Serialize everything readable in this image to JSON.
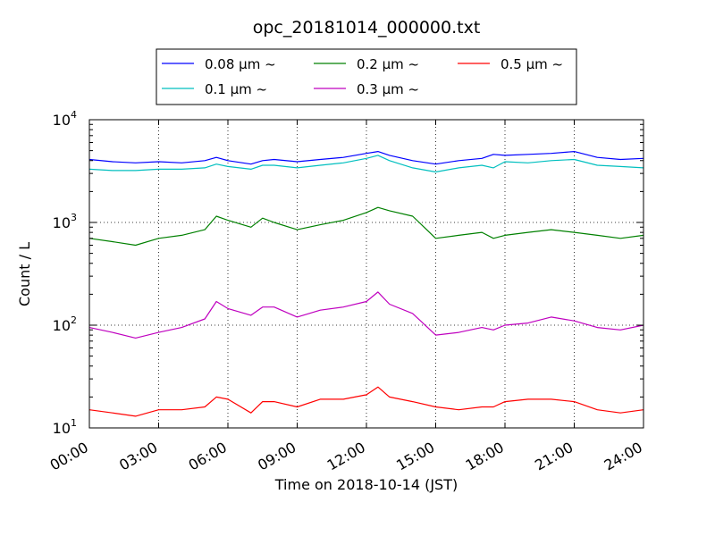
{
  "chart_data": {
    "type": "line",
    "title": "opc_20181014_000000.txt",
    "xlabel": "Time on 2018-10-14 (JST)",
    "ylabel": "Count / L",
    "x_unit": "hours (JST)",
    "xlim": [
      0,
      24
    ],
    "ylim": [
      10,
      10000
    ],
    "y_scale": "log",
    "grid": true,
    "grid_style": "dotted",
    "legend_position": "top (above plot)",
    "x_tick_values": [
      0,
      3,
      6,
      9,
      12,
      15,
      18,
      21,
      24
    ],
    "x_tick_labels": [
      "00:00",
      "03:00",
      "06:00",
      "09:00",
      "12:00",
      "15:00",
      "18:00",
      "21:00",
      "24:00"
    ],
    "y_tick_values": [
      10,
      100,
      1000,
      10000
    ],
    "y_tick_labels": [
      {
        "base": "10",
        "exp": "1"
      },
      {
        "base": "10",
        "exp": "2"
      },
      {
        "base": "10",
        "exp": "3"
      },
      {
        "base": "10",
        "exp": "4"
      }
    ],
    "x": [
      0,
      1,
      2,
      3,
      4,
      5,
      5.5,
      6,
      7,
      7.5,
      8,
      9,
      10,
      11,
      12,
      12.5,
      13,
      14,
      15,
      16,
      17,
      17.5,
      18,
      19,
      20,
      21,
      22,
      23,
      24
    ],
    "series": [
      {
        "name": "0.08 μm ~",
        "color": "#0000ff",
        "values": [
          4100,
          3900,
          3800,
          3900,
          3800,
          4000,
          4300,
          4000,
          3700,
          4000,
          4100,
          3900,
          4100,
          4300,
          4700,
          4900,
          4500,
          4000,
          3700,
          4000,
          4200,
          4600,
          4500,
          4600,
          4700,
          4900,
          4300,
          4100,
          4200
        ]
      },
      {
        "name": "0.1 μm ~",
        "color": "#00bfbf",
        "values": [
          3300,
          3200,
          3200,
          3300,
          3300,
          3400,
          3700,
          3500,
          3300,
          3600,
          3600,
          3400,
          3600,
          3800,
          4200,
          4500,
          4000,
          3400,
          3100,
          3400,
          3600,
          3400,
          3900,
          3800,
          4000,
          4100,
          3600,
          3500,
          3400
        ]
      },
      {
        "name": "0.2 μm ~",
        "color": "#008000",
        "values": [
          700,
          650,
          600,
          700,
          750,
          850,
          1150,
          1050,
          900,
          1100,
          1000,
          850,
          950,
          1050,
          1250,
          1400,
          1300,
          1150,
          700,
          750,
          800,
          700,
          750,
          800,
          850,
          800,
          750,
          700,
          750
        ]
      },
      {
        "name": "0.3 μm ~",
        "color": "#bf00bf",
        "values": [
          95,
          85,
          75,
          85,
          95,
          115,
          170,
          145,
          125,
          150,
          150,
          120,
          140,
          150,
          170,
          210,
          160,
          130,
          80,
          85,
          95,
          90,
          100,
          105,
          120,
          110,
          95,
          90,
          100
        ]
      },
      {
        "name": "0.5 μm ~",
        "color": "#ff0000",
        "values": [
          15,
          14,
          13,
          15,
          15,
          16,
          20,
          19,
          14,
          18,
          18,
          16,
          19,
          19,
          21,
          25,
          20,
          18,
          16,
          15,
          16,
          16,
          18,
          19,
          19,
          18,
          15,
          14,
          15
        ]
      }
    ]
  }
}
